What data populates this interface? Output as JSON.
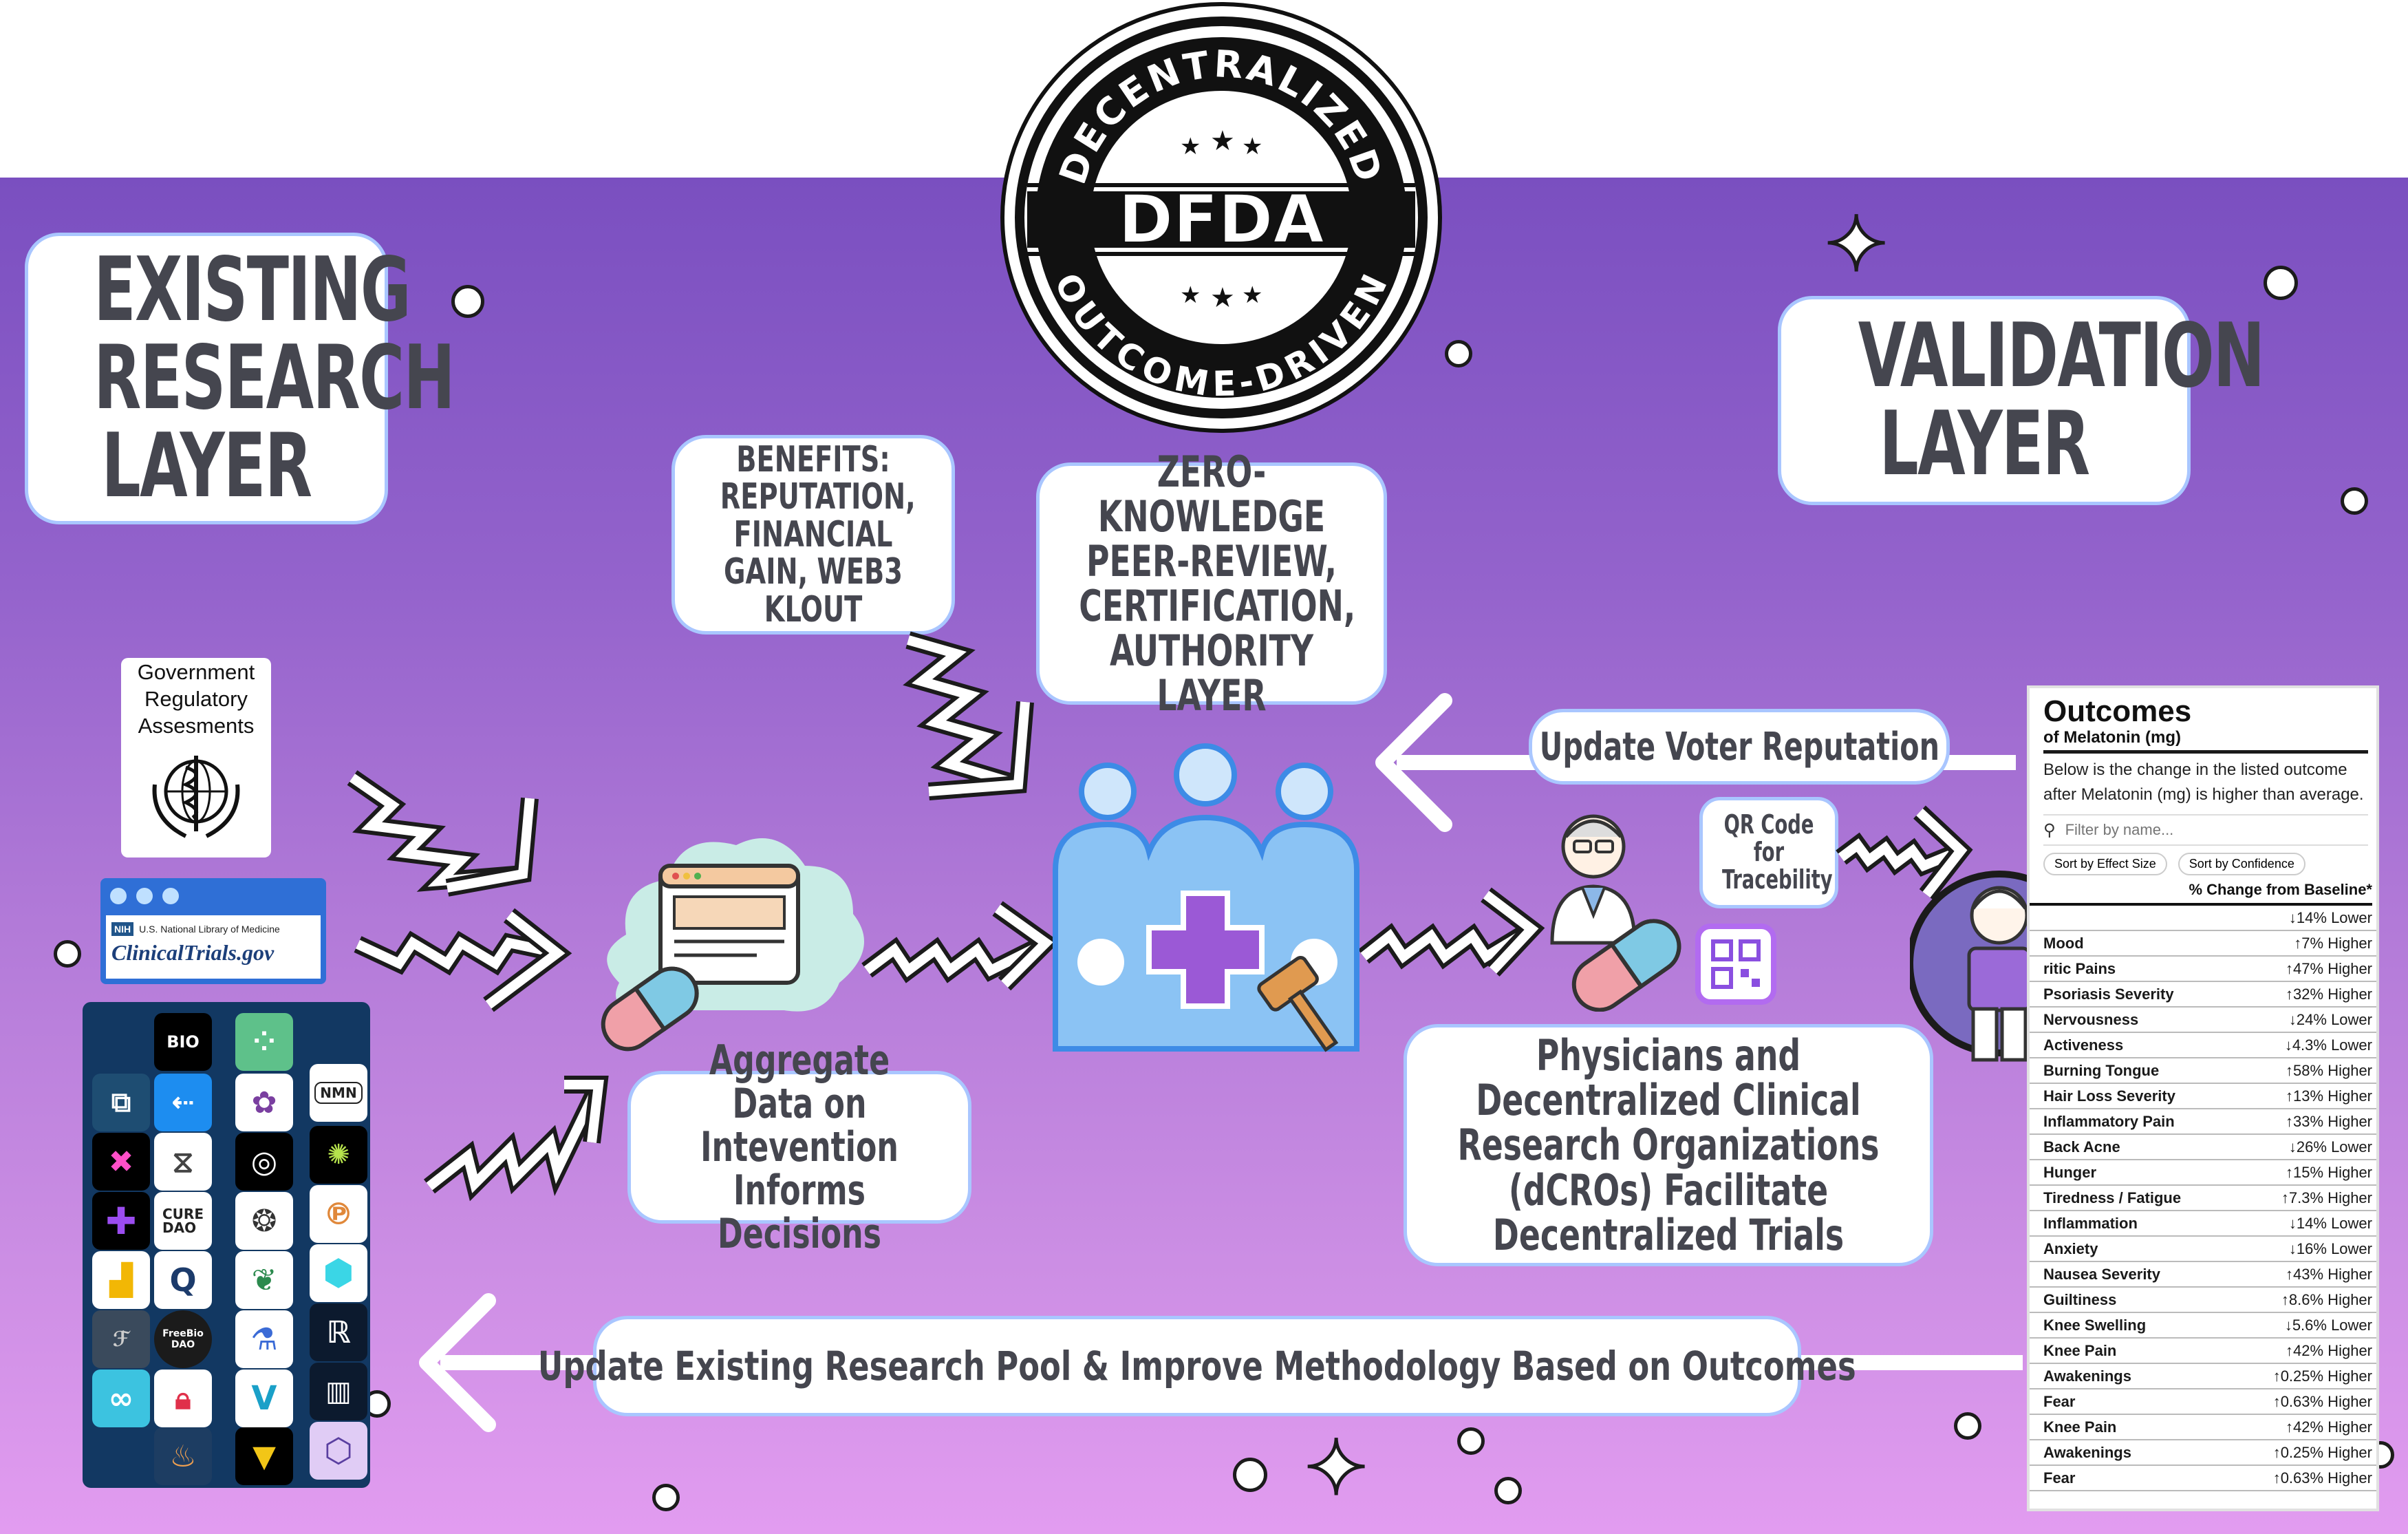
{
  "badge": {
    "top_text": "DECENTRALIZED",
    "center_text": "DFDA",
    "bottom_text": "OUTCOME-DRIVEN"
  },
  "existing_layer": {
    "title": "EXISTING RESEARCH LAYER"
  },
  "validation_layer": {
    "title": "VALIDATION LAYER"
  },
  "benefits": {
    "text": "BENEFITS: REPUTATION, FINANCIAL GAIN, WEB3 KLOUT"
  },
  "zk_layer": {
    "text": "ZERO-KNOWLEDGE PEER-REVIEW, CERTIFICATION, AUTHORITY LAYER"
  },
  "update_voter": {
    "text": "Update Voter Reputation"
  },
  "qr_code": {
    "text": "QR Code for Tracebility"
  },
  "aggregate": {
    "text": "Aggregate Data on Intevention Informs Decisions"
  },
  "physicians": {
    "text": "Physicians and Decentralized Clinical Research Organizations (dCROs) Facilitate Decentralized Trials"
  },
  "update_pool": {
    "text": "Update Existing Research Pool & Improve Methodology Based on Outcomes"
  },
  "government": {
    "text": "Government Regulatory Assesments"
  },
  "clinicaltrials": {
    "nih_label": "NIH",
    "nih_text": "U.S. National Library of Medicine",
    "site": "ClinicalTrials.gov"
  },
  "logos": {
    "bio": "BIO",
    "nmn": "NMN",
    "cure_dao": "CURE DAO",
    "freebio": "FreeBio DAO",
    "vita": "V"
  },
  "outcomes_panel": {
    "title": "Outcomes",
    "subtitle": "of Melatonin (mg)",
    "description": "Below is the change in the listed outcome after Melatonin (mg) is higher than average.",
    "filter_placeholder": "Filter by name...",
    "sort_effect": "Sort by Effect Size",
    "sort_confidence": "Sort by Confidence",
    "column_header": "% Change from Baseline*",
    "rows": [
      {
        "name": "",
        "value": "↓14% Lower"
      },
      {
        "name": "Mood",
        "value": "↑7% Higher"
      },
      {
        "name": "ritic Pains",
        "value": "↑47% Higher"
      },
      {
        "name": "Psoriasis Severity",
        "value": "↑32% Higher"
      },
      {
        "name": "Nervousness",
        "value": "↓24% Lower"
      },
      {
        "name": "Activeness",
        "value": "↓4.3% Lower"
      },
      {
        "name": "Burning Tongue",
        "value": "↑58% Higher"
      },
      {
        "name": "Hair Loss Severity",
        "value": "↑13% Higher"
      },
      {
        "name": "Inflammatory Pain",
        "value": "↑33% Higher"
      },
      {
        "name": "Back Acne",
        "value": "↓26% Lower"
      },
      {
        "name": "Hunger",
        "value": "↑15% Higher"
      },
      {
        "name": "Tiredness / Fatigue",
        "value": "↑7.3% Higher"
      },
      {
        "name": "Inflammation",
        "value": "↓14% Lower"
      },
      {
        "name": "Anxiety",
        "value": "↓16% Lower"
      },
      {
        "name": "Nausea Severity",
        "value": "↑43% Higher"
      },
      {
        "name": "Guiltiness",
        "value": "↑8.6% Higher"
      },
      {
        "name": "Knee Swelling",
        "value": "↓5.6% Lower"
      },
      {
        "name": "Knee Pain",
        "value": "↑42% Higher"
      },
      {
        "name": "Awakenings",
        "value": "↑0.25% Higher"
      },
      {
        "name": "Fear",
        "value": "↑0.63% Higher"
      },
      {
        "name": "Knee Pain",
        "value": "↑42% Higher"
      },
      {
        "name": "Awakenings",
        "value": "↑0.25% Higher"
      },
      {
        "name": "Fear",
        "value": "↑0.63% Higher"
      }
    ]
  },
  "colors": {
    "purple_top": "#7a4fc0",
    "pink_bottom": "#e29cf0",
    "box_border": "#a9c6ff",
    "text_dark": "#45464f",
    "teal_cloud": "#c9ece6",
    "pill_pink": "#f0a0a8",
    "pill_blue": "#7fc9e4",
    "org_blue": "#8bc3f4",
    "cross_purple": "#9b59d6"
  },
  "icons": [
    "world-health-organization-emblem",
    "browser-window-icon",
    "pill-icon",
    "gavel-icon",
    "qr-code-icon",
    "wallet-icon",
    "metamask-fox-icon",
    "search-icon",
    "people-group-icon",
    "physician-icon",
    "patient-icon"
  ]
}
